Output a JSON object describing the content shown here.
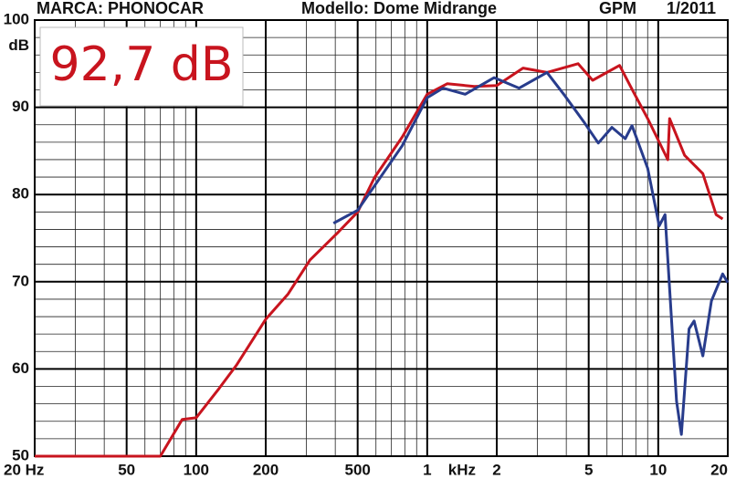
{
  "chart_data": {
    "type": "line",
    "header": [
      "MARCA: PHONOCAR",
      "Modello: Dome Midrange",
      "GPM",
      "1/2011"
    ],
    "annotation": "92,7 dB",
    "y_label": "dB",
    "x_unit_label": "kHz",
    "log_x": true,
    "grid": true,
    "xlim": [
      20,
      20000
    ],
    "ylim": [
      50,
      100
    ],
    "xticks": [
      {
        "value": 20,
        "label": "20 Hz"
      },
      50,
      100,
      200,
      500,
      {
        "value": 1000,
        "label": "1"
      },
      {
        "value": 2000,
        "label": "2"
      },
      {
        "value": 5000,
        "label": "5"
      },
      {
        "value": 10000,
        "label": "10"
      },
      {
        "value": 20000,
        "label": "20"
      }
    ],
    "x_minor_ticks": [
      30,
      40,
      60,
      70,
      80,
      90,
      300,
      400,
      600,
      700,
      800,
      900,
      3000,
      4000,
      6000,
      7000,
      8000,
      9000
    ],
    "yticks": [
      50,
      60,
      70,
      80,
      90,
      100
    ],
    "y_minor_ticks": [
      52,
      54,
      56,
      58,
      62,
      64,
      66,
      68,
      72,
      74,
      76,
      78,
      82,
      84,
      86,
      88,
      92,
      94,
      96,
      98
    ],
    "series": [
      {
        "color": "#c8141e",
        "x": [
          20,
          70,
          87,
          100,
          126,
          150,
          200,
          250,
          311,
          409,
          500,
          590,
          780,
          1000,
          1220,
          1600,
          2000,
          2600,
          3300,
          4500,
          5200,
          6800,
          7800,
          9000,
          11000,
          11200,
          13000,
          15600,
          17800,
          19000
        ],
        "values": [
          50,
          50,
          54.2,
          54.4,
          57.8,
          60.5,
          65.7,
          68.6,
          72.5,
          75.6,
          78,
          81.9,
          86.6,
          91.5,
          92.7,
          92.4,
          92.5,
          94.5,
          94,
          95,
          93.1,
          94.8,
          91.8,
          88.7,
          84,
          88.7,
          84.5,
          82.4,
          77.7,
          77.2
        ]
      },
      {
        "color": "#283c8c",
        "x": [
          393,
          500,
          780,
          1000,
          1170,
          1460,
          1950,
          2500,
          3300,
          3950,
          4800,
          5500,
          6300,
          7200,
          7700,
          9000,
          10100,
          10700,
          12000,
          12600,
          13600,
          14300,
          15600,
          17000,
          19000,
          20000
        ],
        "values": [
          76.7,
          78.2,
          85.6,
          91.1,
          92.2,
          91.5,
          93.4,
          92.2,
          94,
          91.3,
          88.2,
          85.9,
          87.7,
          86.4,
          87.9,
          83,
          76.4,
          77.7,
          56.3,
          52.5,
          64.6,
          65.5,
          61.5,
          67.8,
          70.9,
          69.9
        ]
      }
    ]
  }
}
